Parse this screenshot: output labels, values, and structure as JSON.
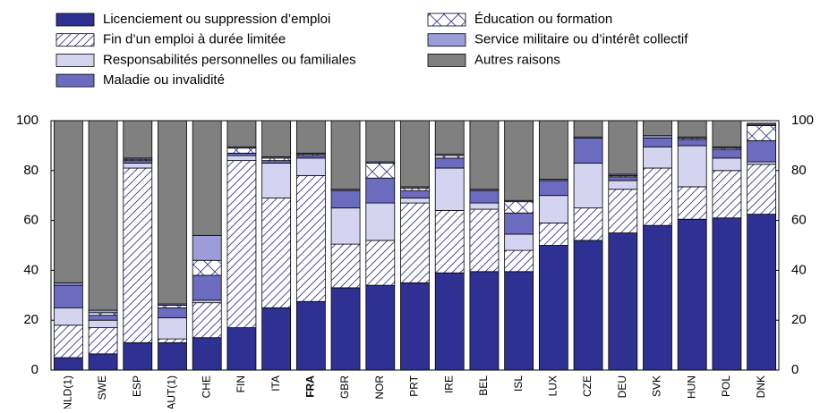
{
  "chart_data": {
    "type": "stacked_bar",
    "categories": [
      "NLD(1)",
      "SWE",
      "ESP",
      "AUT(1)",
      "CHE",
      "FIN",
      "ITA",
      "FRA",
      "GBR",
      "NOR",
      "PRT",
      "IRE",
      "BEL",
      "ISL",
      "LUX",
      "CZE",
      "DEU",
      "SVK",
      "HUN",
      "POL",
      "DNK"
    ],
    "highlight_index": 7,
    "series": [
      {
        "name": "Licenciement ou suppression d’emploi",
        "color": "#2e3192",
        "fill_style": "solid",
        "values": [
          5,
          6.5,
          11,
          11,
          13,
          17,
          25,
          27.5,
          33,
          34,
          35,
          39,
          39.5,
          39.5,
          50,
          52,
          55,
          58,
          60.5,
          61,
          62.5
        ]
      },
      {
        "name": "Fin d’un emploi à durée limitée",
        "color": "#ffffff",
        "fill_style": "diagonal",
        "values": [
          13,
          10.5,
          70,
          1.5,
          14,
          67,
          44,
          50.5,
          17.5,
          18,
          32,
          25,
          25,
          8.5,
          9,
          13,
          17.5,
          23,
          13,
          19,
          20
        ]
      },
      {
        "name": "Responsabilités personnelles ou familiales",
        "color": "#d4d4f0",
        "fill_style": "solid",
        "values": [
          7,
          3,
          2,
          8.5,
          1,
          2,
          14,
          7,
          14.5,
          15,
          2,
          17,
          2.5,
          6.5,
          11,
          18,
          3.5,
          8.5,
          16.5,
          5,
          1
        ]
      },
      {
        "name": "Maladie ou invalidité",
        "color": "#6b6bc0",
        "fill_style": "solid",
        "values": [
          9,
          2,
          1,
          4,
          10,
          1,
          1,
          1,
          7,
          10,
          3,
          4,
          5,
          8.5,
          6,
          10,
          1.5,
          3.5,
          2.5,
          3.5,
          8.5
        ]
      },
      {
        "name": "Éducation ou formation",
        "color": "#ffffff",
        "fill_style": "cross",
        "values": [
          0,
          1,
          0.5,
          1,
          6,
          2,
          1,
          0.5,
          0,
          6,
          1,
          1,
          0,
          4.5,
          0,
          0,
          0.5,
          0,
          0.5,
          0.5,
          6
        ]
      },
      {
        "name": "Service militaire ou d’intérêt collectif",
        "color": "#9c9cd8",
        "fill_style": "solid",
        "values": [
          1,
          1,
          0.5,
          0.5,
          10,
          0.5,
          0.5,
          0.5,
          0.5,
          0.5,
          0.5,
          0.5,
          0.5,
          0.5,
          0.5,
          0.5,
          0.5,
          1,
          0.5,
          0.5,
          0.5
        ]
      },
      {
        "name": "Autres raisons",
        "color": "#808080",
        "fill_style": "solid",
        "values": [
          65,
          76,
          15,
          73.5,
          46,
          10.5,
          14.5,
          13,
          27.5,
          16.5,
          26.5,
          13.5,
          27.5,
          32,
          23.5,
          6.5,
          21.5,
          6,
          6.5,
          10.5,
          0.5
        ]
      }
    ],
    "ylim": [
      0,
      100
    ],
    "yticks": [
      0,
      20,
      40,
      60,
      80,
      100
    ],
    "y2lim": [
      0,
      100
    ],
    "y2ticks": [
      0,
      20,
      40,
      60,
      80,
      100
    ],
    "grid": false
  }
}
